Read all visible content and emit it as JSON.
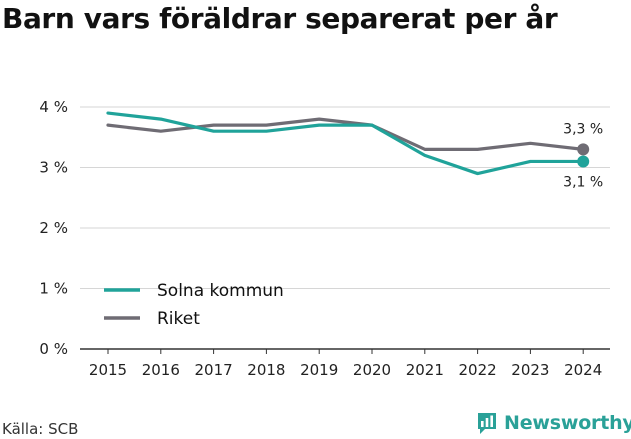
{
  "chart_data": {
    "type": "line",
    "title": "Barn vars föräldrar separerat per år",
    "x": [
      "2015",
      "2016",
      "2017",
      "2018",
      "2019",
      "2020",
      "2021",
      "2022",
      "2023",
      "2024"
    ],
    "ylim": [
      0,
      4
    ],
    "yticks": [
      {
        "value": 0,
        "label": "0 %"
      },
      {
        "value": 1,
        "label": "1 %"
      },
      {
        "value": 2,
        "label": "2 %"
      },
      {
        "value": 3,
        "label": "3 %"
      },
      {
        "value": 4,
        "label": "4 %"
      }
    ],
    "grid": true,
    "legend_position": "bottom-left",
    "series": [
      {
        "name": "Solna kommun",
        "color": "#20a39a",
        "values": [
          3.9,
          3.8,
          3.6,
          3.6,
          3.7,
          3.7,
          3.2,
          2.9,
          3.1,
          3.1
        ],
        "end_label": "3,1 %"
      },
      {
        "name": "Riket",
        "color": "#6f6c74",
        "values": [
          3.7,
          3.6,
          3.7,
          3.7,
          3.8,
          3.7,
          3.3,
          3.3,
          3.4,
          3.3
        ],
        "end_label": "3,3 %"
      }
    ]
  },
  "source": "Källa: SCB",
  "brand": {
    "name": "Newsworthy",
    "icon": "newsworthy-logo-icon",
    "color": "#2aa198"
  }
}
